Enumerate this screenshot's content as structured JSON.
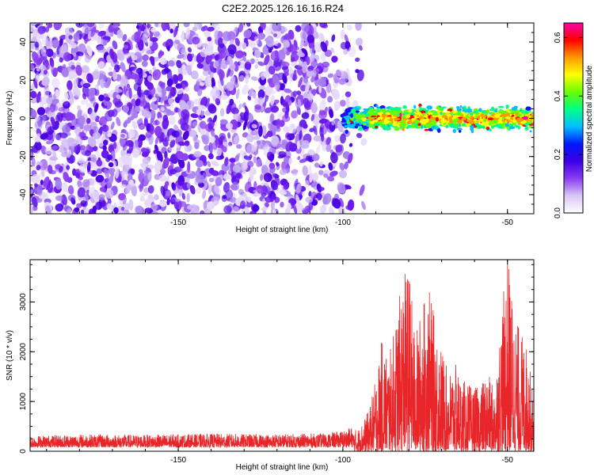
{
  "page": {
    "title": "C2E2.2025.126.16.16.R24"
  },
  "chart_data": [
    {
      "type": "heatmap",
      "xlabel": "Height of straight line (km)",
      "ylabel": "Frequency (Hz)",
      "xlim": [
        -195,
        -42
      ],
      "ylim": [
        -50,
        50
      ],
      "x_ticks": [
        -150,
        -100,
        -50
      ],
      "x_tick_labels": [
        "-150",
        "-100",
        "-50"
      ],
      "y_ticks": [
        -40,
        -20,
        0,
        20,
        40
      ],
      "y_tick_labels": [
        "-40",
        "-20",
        "0",
        "20",
        "40"
      ],
      "colorbar": {
        "label": "Normalized spectral amplitude",
        "range": [
          0.0,
          0.65
        ],
        "ticks": [
          0.0,
          0.2,
          0.4,
          0.6
        ],
        "tick_labels": [
          "0.0",
          "0.2",
          "0.4",
          "0.6"
        ],
        "colormap": [
          "#ffffff",
          "#d9c6f5",
          "#8a3cf0",
          "#3b00e6",
          "#0018ff",
          "#00bfff",
          "#00ff88",
          "#66ff00",
          "#ffff00",
          "#ff9900",
          "#ff0000",
          "#ff00aa"
        ]
      },
      "regions": [
        {
          "x_range": [
            -195,
            -92
          ],
          "y_range": [
            -50,
            50
          ],
          "description_level": 0.08
        },
        {
          "x_range": [
            -100,
            -42
          ],
          "y_range": [
            -6,
            6
          ],
          "description_level": 0.35
        }
      ],
      "grid": false
    },
    {
      "type": "line",
      "xlabel": "Height of straight line (km)",
      "ylabel": "SNR (10 * v/v)",
      "xlim": [
        -195,
        -42
      ],
      "ylim": [
        0,
        3850
      ],
      "x_ticks": [
        -150,
        -100,
        -50
      ],
      "x_tick_labels": [
        "-150",
        "-100",
        "-50"
      ],
      "y_ticks": [
        0,
        1000,
        2000,
        3000
      ],
      "y_tick_labels": [
        "0",
        "1000",
        "2000",
        "3000"
      ],
      "color": "#e8262a",
      "series": [
        {
          "x": [
            -195,
            -180,
            -160,
            -140,
            -120,
            -105,
            -100,
            -95,
            -92,
            -90,
            -88,
            -86,
            -84,
            -82,
            -80,
            -78,
            -76,
            -74,
            -72,
            -70,
            -68,
            -66,
            -64,
            -62,
            -60,
            -58,
            -56,
            -54,
            -52,
            -50,
            -48,
            -46,
            -44,
            -42
          ],
          "values": [
            220,
            250,
            240,
            260,
            250,
            270,
            320,
            450,
            800,
            1400,
            2200,
            1800,
            2500,
            3300,
            3600,
            2200,
            2800,
            3200,
            2500,
            2000,
            1500,
            1700,
            1400,
            1300,
            1200,
            1300,
            1500,
            1200,
            2500,
            3800,
            2700,
            2300,
            2000,
            1000
          ]
        }
      ],
      "grid": false
    }
  ]
}
